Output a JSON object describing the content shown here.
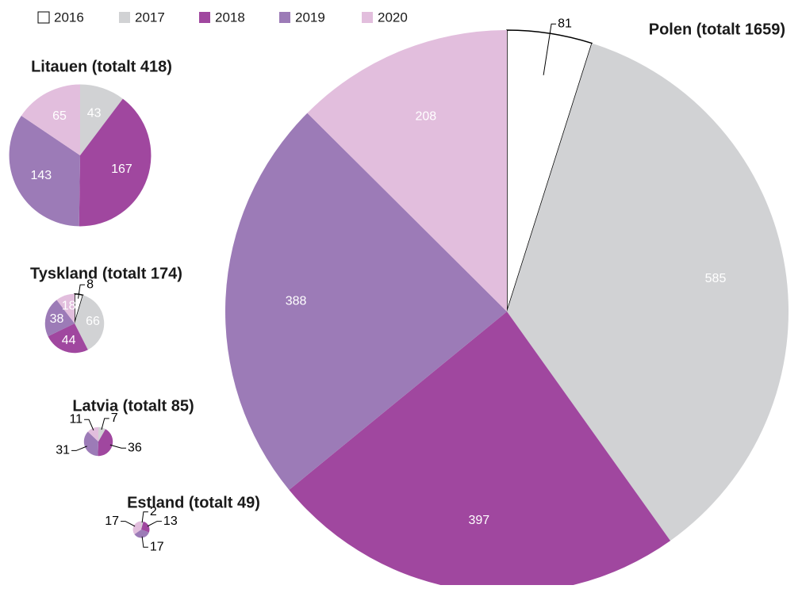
{
  "chart_data": [
    {
      "type": "pie",
      "title": "Polen (totalt 1659)",
      "categories": [
        "2016",
        "2017",
        "2018",
        "2019",
        "2020"
      ],
      "values": [
        81,
        585,
        397,
        388,
        208
      ],
      "colors": [
        "#ffffff",
        "#d1d2d4",
        "#a0479f",
        "#9c7bb7",
        "#e2bedd"
      ]
    },
    {
      "type": "pie",
      "title": "Litauen (totalt 418)",
      "categories": [
        "2017",
        "2018",
        "2019",
        "2020"
      ],
      "values": [
        43,
        167,
        143,
        65
      ],
      "colors": [
        "#d1d2d4",
        "#a0479f",
        "#9c7bb7",
        "#e2bedd"
      ]
    },
    {
      "type": "pie",
      "title": "Tyskland (totalt 174)",
      "categories": [
        "2016",
        "2017",
        "2018",
        "2019",
        "2020"
      ],
      "values": [
        8,
        66,
        44,
        38,
        18
      ],
      "colors": [
        "#ffffff",
        "#d1d2d4",
        "#a0479f",
        "#9c7bb7",
        "#e2bedd"
      ]
    },
    {
      "type": "pie",
      "title": "Latvia (totalt 85)",
      "categories": [
        "2017",
        "2018",
        "2019",
        "2020"
      ],
      "values": [
        7,
        36,
        31,
        11
      ],
      "colors": [
        "#d1d2d4",
        "#a0479f",
        "#9c7bb7",
        "#e2bedd"
      ]
    },
    {
      "type": "pie",
      "title": "Estland (totalt 49)",
      "categories": [
        "2017",
        "2018",
        "2019",
        "2020"
      ],
      "values": [
        2,
        13,
        17,
        17
      ],
      "colors": [
        "#d1d2d4",
        "#a0479f",
        "#9c7bb7",
        "#e2bedd"
      ]
    }
  ]
}
